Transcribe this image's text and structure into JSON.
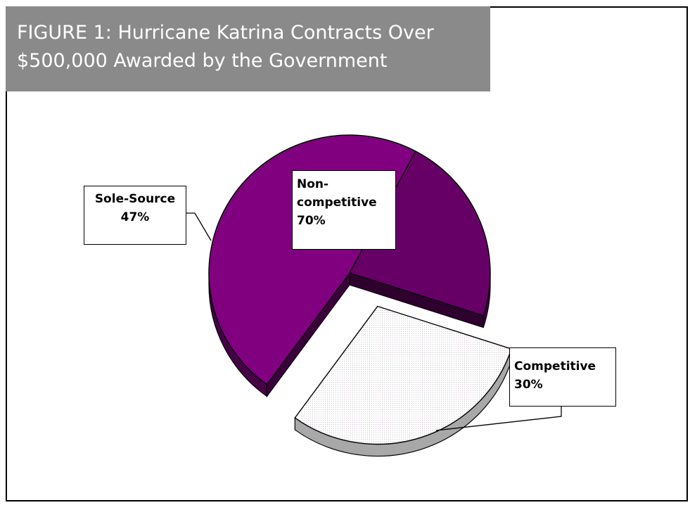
{
  "figure": {
    "title_line1": "FIGURE 1:  Hurricane Katrina Contracts Over",
    "title_line2": "$500,000 Awarded by the Government"
  },
  "labels": {
    "sole_source": {
      "name": "Sole-Source",
      "value": "47%"
    },
    "non_competitive": {
      "name_line1": "Non-",
      "name_line2": "competitive",
      "value": "70%"
    },
    "competitive": {
      "name": "Competitive",
      "value": "30%"
    }
  },
  "chart_data": {
    "type": "pie",
    "title": "FIGURE 1:  Hurricane Katrina Contracts Over $500,000 Awarded by the Government",
    "slices": [
      {
        "label": "Non-competitive",
        "value": 70,
        "color": "#660066"
      },
      {
        "label": "Sole-Source",
        "value": 47,
        "color": "#800080"
      },
      {
        "label": "Competitive",
        "value": 30,
        "color": "#f4f0f4",
        "exploded": true
      }
    ],
    "style": "3d-exploded"
  }
}
